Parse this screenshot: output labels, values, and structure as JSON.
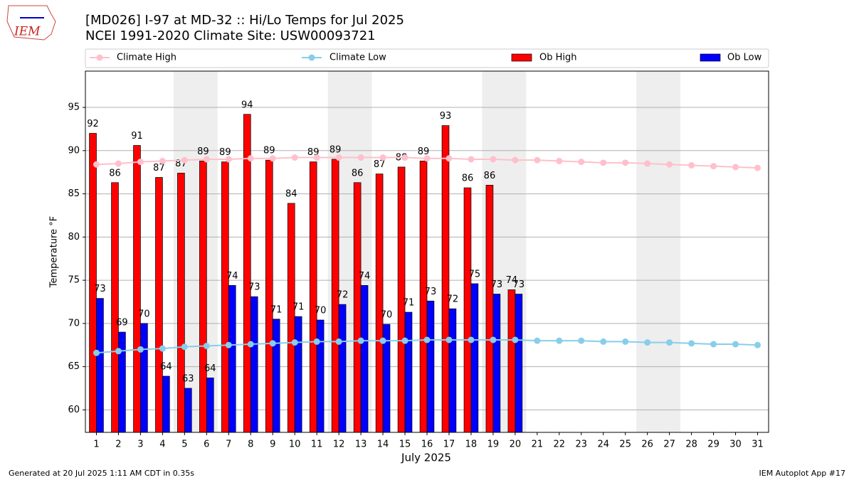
{
  "chart_data": {
    "type": "bar",
    "title": "[MD026] I-97 at MD-32 :: Hi/Lo Temps for Jul 2025",
    "subtitle": "NCEI 1991-2020 Climate Site: USW00093721",
    "logo": "IEM",
    "x_label": "July 2025",
    "y_label": "Temperature °F",
    "footer_left": "Generated at 20 Jul 2025 1:11 AM CDT in 0.35s",
    "footer_right": "IEM Autoplot App #17",
    "x": [
      1,
      2,
      3,
      4,
      5,
      6,
      7,
      8,
      9,
      10,
      11,
      12,
      13,
      14,
      15,
      16,
      17,
      18,
      19,
      20,
      21,
      22,
      23,
      24,
      25,
      26,
      27,
      28,
      29,
      30,
      31
    ],
    "xlim": [
      0.5,
      31.5
    ],
    "xticks": [
      1,
      2,
      3,
      4,
      5,
      6,
      7,
      8,
      9,
      10,
      11,
      12,
      13,
      14,
      15,
      16,
      17,
      18,
      19,
      20,
      21,
      22,
      23,
      24,
      25,
      26,
      27,
      28,
      29,
      30,
      31
    ],
    "ylim": [
      57.4,
      99.2
    ],
    "yticks": [
      60,
      65,
      70,
      75,
      80,
      85,
      90,
      95
    ],
    "grid": true,
    "shaded_x": [
      [
        4.5,
        6.5
      ],
      [
        11.5,
        13.5
      ],
      [
        18.5,
        20.5
      ],
      [
        25.5,
        27.5
      ]
    ],
    "shade_color": "#eeeeee",
    "series": [
      {
        "name": "Climate High",
        "type": "line",
        "color": "#ffc0cb",
        "values": [
          88.4,
          88.5,
          88.7,
          88.8,
          88.9,
          89.0,
          89.0,
          89.1,
          89.1,
          89.2,
          89.2,
          89.2,
          89.2,
          89.2,
          89.2,
          89.1,
          89.1,
          89.0,
          89.0,
          88.9,
          88.9,
          88.8,
          88.7,
          88.6,
          88.6,
          88.5,
          88.4,
          88.3,
          88.2,
          88.1,
          88.0
        ]
      },
      {
        "name": "Climate Low",
        "type": "line",
        "color": "#87ceeb",
        "values": [
          66.6,
          66.8,
          67.0,
          67.1,
          67.3,
          67.4,
          67.5,
          67.6,
          67.7,
          67.8,
          67.9,
          67.9,
          68.0,
          68.0,
          68.0,
          68.1,
          68.1,
          68.1,
          68.1,
          68.1,
          68.0,
          68.0,
          68.0,
          67.9,
          67.9,
          67.8,
          67.8,
          67.7,
          67.6,
          67.6,
          67.5
        ]
      },
      {
        "name": "Ob High",
        "type": "bar",
        "color": "#ff0000",
        "values": [
          92.0,
          86.3,
          90.6,
          86.9,
          87.4,
          88.8,
          88.7,
          94.2,
          88.9,
          83.9,
          88.7,
          89.0,
          86.3,
          87.3,
          88.1,
          88.8,
          92.9,
          85.7,
          86.0,
          73.9,
          null,
          null,
          null,
          null,
          null,
          null,
          null,
          null,
          null,
          null,
          null
        ],
        "value_labels": [
          "92",
          "86",
          "91",
          "87",
          "87",
          "89",
          "89",
          "94",
          "89",
          "84",
          "89",
          "89",
          "86",
          "87",
          "88",
          "89",
          "93",
          "86",
          "86",
          "74",
          null,
          null,
          null,
          null,
          null,
          null,
          null,
          null,
          null,
          null,
          null
        ]
      },
      {
        "name": "Ob Low",
        "type": "bar",
        "color": "#0000ff",
        "values": [
          72.9,
          69.0,
          70.0,
          63.9,
          62.5,
          63.7,
          74.4,
          73.1,
          70.5,
          70.8,
          70.4,
          72.2,
          74.4,
          69.9,
          71.3,
          72.6,
          71.7,
          74.6,
          73.4,
          73.4,
          null,
          null,
          null,
          null,
          null,
          null,
          null,
          null,
          null,
          null,
          null
        ],
        "value_labels": [
          "73",
          "69",
          "70",
          "64",
          "63",
          "64",
          "74",
          "73",
          "71",
          "71",
          "70",
          "72",
          "74",
          "70",
          "71",
          "73",
          "72",
          "75",
          "73",
          "73",
          null,
          null,
          null,
          null,
          null,
          null,
          null,
          null,
          null,
          null,
          null
        ]
      }
    ]
  }
}
